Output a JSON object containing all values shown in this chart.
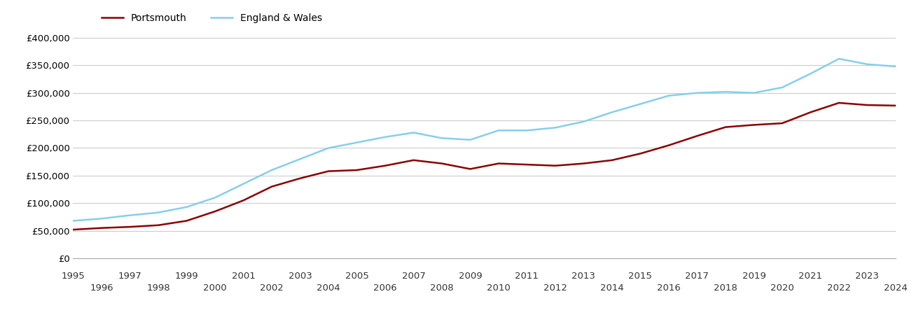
{
  "portsmouth": {
    "years": [
      1995,
      1996,
      1997,
      1998,
      1999,
      2000,
      2001,
      2002,
      2003,
      2004,
      2005,
      2006,
      2007,
      2008,
      2009,
      2010,
      2011,
      2012,
      2013,
      2014,
      2015,
      2016,
      2017,
      2018,
      2019,
      2020,
      2021,
      2022,
      2023,
      2024
    ],
    "values": [
      52000,
      55000,
      57000,
      60000,
      68000,
      85000,
      105000,
      130000,
      145000,
      158000,
      160000,
      168000,
      178000,
      172000,
      162000,
      172000,
      170000,
      168000,
      172000,
      178000,
      190000,
      205000,
      222000,
      238000,
      242000,
      245000,
      265000,
      282000,
      278000,
      277000
    ]
  },
  "england_wales": {
    "years": [
      1995,
      1996,
      1997,
      1998,
      1999,
      2000,
      2001,
      2002,
      2003,
      2004,
      2005,
      2006,
      2007,
      2008,
      2009,
      2010,
      2011,
      2012,
      2013,
      2014,
      2015,
      2016,
      2017,
      2018,
      2019,
      2020,
      2021,
      2022,
      2023,
      2024
    ],
    "values": [
      68000,
      72000,
      78000,
      83000,
      93000,
      110000,
      135000,
      160000,
      180000,
      200000,
      210000,
      220000,
      228000,
      218000,
      215000,
      232000,
      232000,
      237000,
      248000,
      265000,
      280000,
      295000,
      300000,
      302000,
      300000,
      310000,
      335000,
      362000,
      352000,
      348000
    ]
  },
  "portsmouth_color": "#8B0000",
  "england_wales_color": "#87CEEB",
  "portsmouth_label": "Portsmouth",
  "england_wales_label": "England & Wales",
  "ylim": [
    0,
    400000
  ],
  "ytick_values": [
    0,
    50000,
    100000,
    150000,
    200000,
    250000,
    300000,
    350000,
    400000
  ],
  "background_color": "#ffffff",
  "grid_color": "#cccccc",
  "line_width": 1.8,
  "odd_years": [
    1995,
    1997,
    1999,
    2001,
    2003,
    2005,
    2007,
    2009,
    2011,
    2013,
    2015,
    2017,
    2019,
    2021,
    2023
  ],
  "even_years": [
    1996,
    1998,
    2000,
    2002,
    2004,
    2006,
    2008,
    2010,
    2012,
    2014,
    2016,
    2018,
    2020,
    2022,
    2024
  ]
}
